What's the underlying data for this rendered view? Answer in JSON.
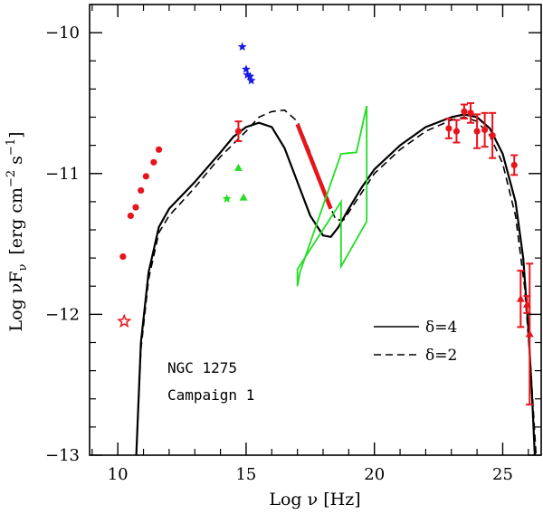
{
  "chart_data": {
    "type": "scatter",
    "title": "",
    "xlabel": "Log ν  [Hz]",
    "ylabel": "Log νFν  [erg cm⁻² s⁻¹]",
    "ylabel_main": "Log νF",
    "ylabel_sub": "ν",
    "ylabel_units": "[erg cm",
    "ylabel_exp1": "−2",
    "ylabel_s": " s",
    "ylabel_exp2": "−1",
    "ylabel_close": "]",
    "xlim": [
      8.9,
      26.5
    ],
    "ylim": [
      -13,
      -9.8
    ],
    "x_ticks": [
      {
        "value": 10,
        "label": "10"
      },
      {
        "value": 15,
        "label": "15"
      },
      {
        "value": 20,
        "label": "20"
      },
      {
        "value": 25,
        "label": "25"
      }
    ],
    "y_ticks": [
      {
        "value": -10,
        "label": "−10"
      },
      {
        "value": -11,
        "label": "−11"
      },
      {
        "value": -12,
        "label": "−12"
      },
      {
        "value": -13,
        "label": "−13"
      }
    ],
    "annotations": {
      "source": "NGC 1275",
      "campaign": "Campaign 1"
    },
    "legend": [
      {
        "label": "δ=4",
        "style": "solid"
      },
      {
        "label": "δ=2",
        "style": "dashed"
      }
    ],
    "colors": {
      "red": "#e8141c",
      "blue": "#1a1ae6",
      "green": "#22dd22",
      "black": "#000000"
    },
    "series": [
      {
        "name": "radio-points",
        "color": "#e8141c",
        "marker": "circle",
        "points": [
          [
            10.2,
            -11.59
          ],
          [
            10.5,
            -11.3
          ],
          [
            10.7,
            -11.24
          ],
          [
            10.9,
            -11.12
          ],
          [
            11.1,
            -11.02
          ],
          [
            11.4,
            -10.92
          ],
          [
            11.6,
            -10.83
          ]
        ]
      },
      {
        "name": "radio-upper-star",
        "color": "#e8141c",
        "marker": "star-open",
        "points": [
          [
            10.25,
            -12.05
          ]
        ]
      },
      {
        "name": "optical-blue",
        "color": "#1a1ae6",
        "marker": "star",
        "points": [
          [
            14.85,
            -10.1
          ],
          [
            15.0,
            -10.26
          ],
          [
            15.05,
            -10.3
          ],
          [
            15.15,
            -10.31
          ],
          [
            15.2,
            -10.34
          ]
        ]
      },
      {
        "name": "optical-red",
        "color": "#e8141c",
        "marker": "circle",
        "points": [
          [
            14.7,
            -10.7
          ]
        ],
        "errors": [
          0.07
        ]
      },
      {
        "name": "infrared-green",
        "color": "#22dd22",
        "marker": "triangle",
        "points": [
          [
            14.7,
            -10.96
          ],
          [
            14.9,
            -11.17
          ]
        ]
      },
      {
        "name": "infrared-green-star",
        "color": "#22dd22",
        "marker": "star",
        "points": [
          [
            14.25,
            -11.18
          ]
        ]
      },
      {
        "name": "gamma-gev",
        "color": "#e8141c",
        "marker": "circle",
        "points": [
          [
            22.9,
            -10.68
          ],
          [
            23.2,
            -10.7
          ],
          [
            23.5,
            -10.56
          ],
          [
            23.75,
            -10.57
          ],
          [
            24.0,
            -10.7
          ],
          [
            24.3,
            -10.69
          ],
          [
            24.6,
            -10.73
          ],
          [
            25.45,
            -10.94
          ]
        ],
        "errors": [
          0.07,
          0.08,
          0.05,
          0.07,
          0.12,
          0.12,
          0.16,
          0.07
        ]
      },
      {
        "name": "gamma-tev",
        "color": "#e8141c",
        "marker": "triangle",
        "points": [
          [
            25.7,
            -11.89
          ],
          [
            25.95,
            -11.93
          ],
          [
            26.05,
            -12.14
          ]
        ],
        "errors": [
          0.2,
          0.06,
          0.5
        ]
      },
      {
        "name": "xray-bowtie-red",
        "color": "#e8141c",
        "style": "thick-line",
        "points": [
          [
            17.0,
            -10.65
          ],
          [
            18.3,
            -11.25
          ]
        ]
      },
      {
        "name": "xray-bowtie-green",
        "color": "#22dd22",
        "style": "polygon",
        "points": [
          [
            17.0,
            -11.8
          ],
          [
            17.1,
            -11.7
          ],
          [
            18.7,
            -10.86
          ],
          [
            19.3,
            -10.85
          ],
          [
            19.7,
            -10.52
          ],
          [
            19.7,
            -11.34
          ],
          [
            18.7,
            -11.66
          ],
          [
            18.7,
            -11.2
          ],
          [
            17.0,
            -11.68
          ]
        ]
      },
      {
        "name": "model-delta-4",
        "color": "#000000",
        "style": "solid",
        "points": [
          [
            10.72,
            -13.0
          ],
          [
            10.9,
            -12.2
          ],
          [
            11.2,
            -11.7
          ],
          [
            11.6,
            -11.38
          ],
          [
            12.0,
            -11.25
          ],
          [
            13.0,
            -11.06
          ],
          [
            14.0,
            -10.85
          ],
          [
            14.5,
            -10.74
          ],
          [
            15.0,
            -10.67
          ],
          [
            15.5,
            -10.64
          ],
          [
            16.0,
            -10.67
          ],
          [
            16.5,
            -10.82
          ],
          [
            17.0,
            -11.06
          ],
          [
            17.5,
            -11.3
          ],
          [
            18.0,
            -11.44
          ],
          [
            18.3,
            -11.45
          ],
          [
            18.6,
            -11.38
          ],
          [
            19.0,
            -11.25
          ],
          [
            19.5,
            -11.1
          ],
          [
            20.0,
            -10.97
          ],
          [
            21.0,
            -10.8
          ],
          [
            22.0,
            -10.67
          ],
          [
            23.0,
            -10.6
          ],
          [
            23.5,
            -10.58
          ],
          [
            24.0,
            -10.6
          ],
          [
            24.5,
            -10.68
          ],
          [
            25.0,
            -10.86
          ],
          [
            25.5,
            -11.2
          ],
          [
            25.8,
            -11.6
          ],
          [
            26.0,
            -12.1
          ],
          [
            26.15,
            -12.6
          ],
          [
            26.25,
            -13.0
          ]
        ]
      },
      {
        "name": "model-delta-2",
        "color": "#000000",
        "style": "dashed",
        "points": [
          [
            10.72,
            -13.0
          ],
          [
            10.9,
            -12.25
          ],
          [
            11.2,
            -11.75
          ],
          [
            11.6,
            -11.42
          ],
          [
            12.0,
            -11.3
          ],
          [
            13.0,
            -11.1
          ],
          [
            14.0,
            -10.88
          ],
          [
            15.0,
            -10.7
          ],
          [
            15.5,
            -10.6
          ],
          [
            16.0,
            -10.56
          ],
          [
            16.5,
            -10.55
          ],
          [
            17.0,
            -10.63
          ],
          [
            17.5,
            -10.85
          ],
          [
            18.0,
            -11.12
          ],
          [
            18.5,
            -11.33
          ],
          [
            18.8,
            -11.33
          ],
          [
            19.2,
            -11.22
          ],
          [
            20.0,
            -11.0
          ],
          [
            21.0,
            -10.83
          ],
          [
            22.0,
            -10.7
          ],
          [
            23.0,
            -10.62
          ],
          [
            23.5,
            -10.6
          ],
          [
            24.0,
            -10.63
          ],
          [
            24.5,
            -10.73
          ],
          [
            25.0,
            -10.93
          ],
          [
            25.5,
            -11.3
          ],
          [
            25.85,
            -11.8
          ],
          [
            26.1,
            -12.4
          ],
          [
            26.3,
            -13.0
          ]
        ]
      }
    ]
  }
}
